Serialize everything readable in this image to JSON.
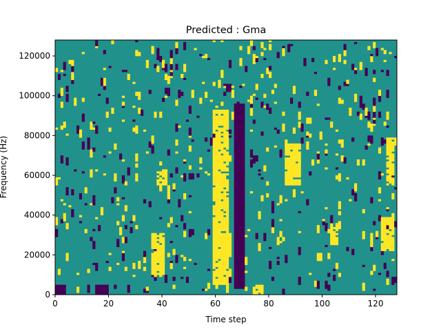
{
  "chart_data": {
    "type": "heatmap",
    "title": "Predicted : Gma",
    "xlabel": "Time step",
    "ylabel": "Frequency (Hz)",
    "xlim": [
      0,
      128
    ],
    "ylim": [
      0,
      128000
    ],
    "x_ticks": [
      0,
      20,
      40,
      60,
      80,
      100,
      120
    ],
    "y_ticks": [
      0,
      20000,
      40000,
      60000,
      80000,
      100000,
      120000
    ],
    "x_tick_labels": [
      "0",
      "20",
      "40",
      "60",
      "80",
      "100",
      "120"
    ],
    "y_tick_labels": [
      "0",
      "20000",
      "40000",
      "60000",
      "80000",
      "100000",
      "120000"
    ],
    "grid": false,
    "colormap": "viridis",
    "value_range": [
      -1,
      1
    ],
    "colors": {
      "negative": "#440154",
      "zero": "#21918c",
      "positive": "#fde725"
    },
    "grid_size": {
      "time_steps": 128,
      "frequency_bins": 128
    },
    "regions": [
      {
        "t0": 59,
        "t1": 64,
        "f0": 5,
        "f1": 92,
        "value": 1
      },
      {
        "t0": 60,
        "t1": 65,
        "f0": 18,
        "f1": 30,
        "value": 1
      },
      {
        "t0": 67,
        "t1": 70,
        "f0": 3,
        "f1": 95,
        "value": -1
      },
      {
        "t0": 36,
        "t1": 40,
        "f0": 10,
        "f1": 30,
        "value": 1
      },
      {
        "t0": 38,
        "t1": 41,
        "f0": 55,
        "f1": 62,
        "value": 1
      },
      {
        "t0": 86,
        "t1": 91,
        "f0": 55,
        "f1": 75,
        "value": 1
      },
      {
        "t0": 103,
        "t1": 105,
        "f0": 25,
        "f1": 35,
        "value": 1
      },
      {
        "t0": 122,
        "t1": 126,
        "f0": 22,
        "f1": 38,
        "value": 1
      },
      {
        "t0": 124,
        "t1": 126,
        "f0": 55,
        "f1": 78,
        "value": 1
      },
      {
        "t0": 0,
        "t1": 3,
        "f0": 0,
        "f1": 4,
        "value": -1
      },
      {
        "t0": 15,
        "t1": 19,
        "f0": 0,
        "f1": 4,
        "value": -1
      },
      {
        "t0": 74,
        "t1": 77,
        "f0": 0,
        "f1": 4,
        "value": 1
      }
    ],
    "noise": {
      "seed": 2024,
      "event_probability": 0.035,
      "positive_share": 0.55
    }
  }
}
